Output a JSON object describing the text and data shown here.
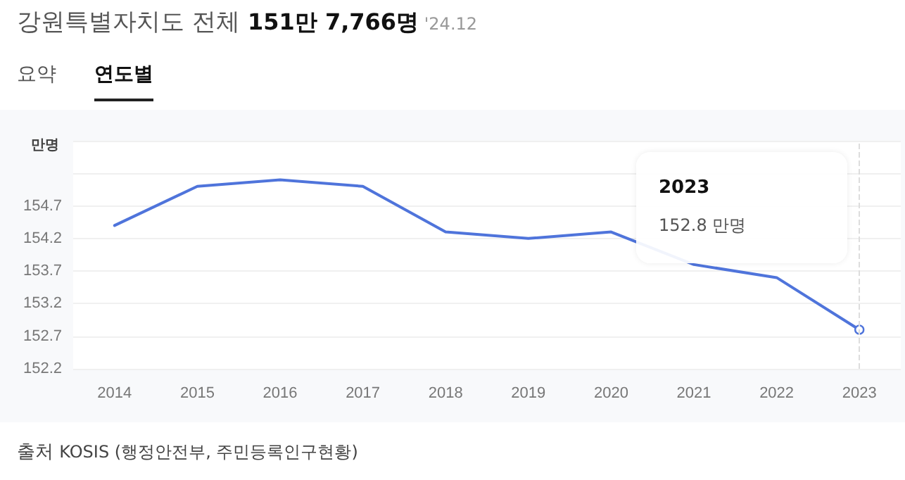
{
  "chart_data": {
    "type": "line",
    "title": "강원특별자치도 전체",
    "subtitle": "151만 7,766명",
    "ylabel": "만명",
    "annotations": [
      "'24.12",
      "요약",
      "연도별",
      "출처",
      "KOSIS (행정안전부, 주민등록인구현황)",
      "2023",
      "152.8 만명"
    ],
    "categories": [
      "2014",
      "2015",
      "2016",
      "2017",
      "2018",
      "2019",
      "2020",
      "2021",
      "2022",
      "2023"
    ],
    "series": [
      {
        "color": "#4f74db",
        "values": [
          154.4,
          155.0,
          155.1,
          155.0,
          154.3,
          154.2,
          154.3,
          153.8,
          153.6,
          152.8
        ]
      }
    ],
    "ylim": [
      152.2,
      155.7
    ],
    "yticks": [
      152.2,
      152.7,
      153.2,
      153.7,
      154.2,
      154.7,
      {
        "value": 155.2,
        "label": null
      },
      {
        "value": 155.7,
        "label": null
      }
    ],
    "ref_lines": [
      {
        "axis": "x",
        "value": "2023",
        "color": "#dddddd",
        "line_style": "dashed"
      }
    ],
    "grid": "y",
    "marker": "none",
    "line_style": "solid"
  }
}
